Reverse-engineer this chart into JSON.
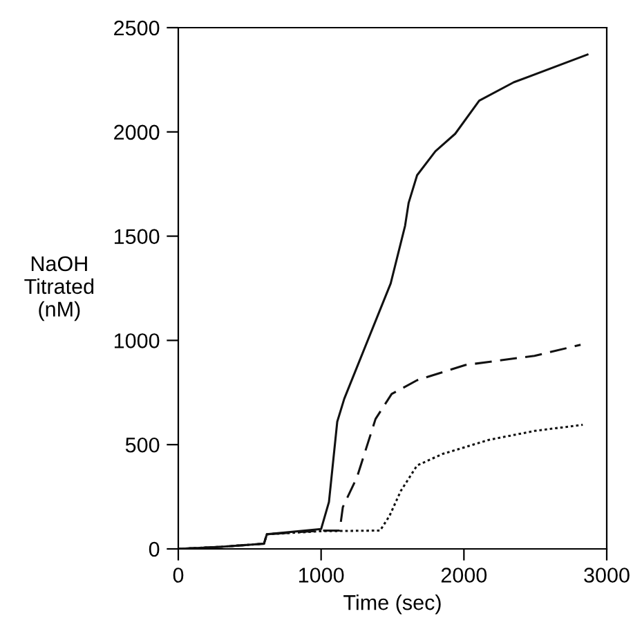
{
  "chart_data": {
    "type": "line",
    "xlabel": "Time (sec)",
    "ylabel": "NaOH\nTitrated\n(nM)",
    "xlim": [
      0,
      3000
    ],
    "xticks": [
      0,
      1000,
      2000,
      3000
    ],
    "ylim": [
      0,
      2500
    ],
    "yticks": [
      0,
      500,
      1000,
      1500,
      2000,
      2500
    ],
    "grid": false,
    "legend": false,
    "marker": "none",
    "series": [
      {
        "color": "#111111",
        "line_style": "solid",
        "x": [
          0,
          300,
          600,
          620,
          1000,
          1055,
          1113,
          1162,
          1487,
          1588,
          1613,
          1672,
          1800,
          1939,
          2107,
          2349,
          2865
        ],
        "values": [
          0,
          10,
          25,
          70,
          95,
          225,
          610,
          720,
          1273,
          1550,
          1660,
          1792,
          1907,
          1991,
          2150,
          2238,
          2371
        ]
      },
      {
        "color": "#111111",
        "line_style": "dashed",
        "x": [
          0,
          300,
          600,
          620,
          1000,
          1130,
          1152,
          1252,
          1381,
          1494,
          1672,
          2010,
          2494,
          2817
        ],
        "values": [
          0,
          10,
          25,
          70,
          88,
          88,
          200,
          345,
          623,
          743,
          809,
          882,
          926,
          979
        ]
      },
      {
        "color": "#111111",
        "line_style": "dotted",
        "x": [
          0,
          300,
          600,
          620,
          1000,
          1413,
          1478,
          1558,
          1672,
          1849,
          2171,
          2494,
          2832
        ],
        "values": [
          0,
          10,
          25,
          70,
          85,
          88,
          157,
          278,
          400,
          455,
          522,
          566,
          595
        ]
      }
    ]
  }
}
